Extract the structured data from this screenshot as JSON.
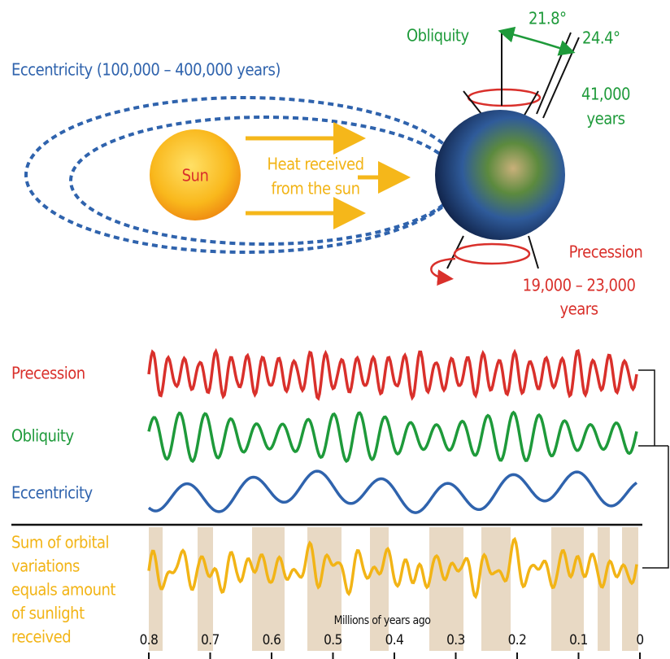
{
  "orbit": {
    "eccentricity_label": "Eccentricity (100,000 – 400,000 years)",
    "sun": "Sun",
    "heat": [
      "Heat received",
      "from the sun"
    ],
    "obliquity": "Obliquity",
    "angle_min": "21.8°",
    "angle_max": "24.4°",
    "obliquity_period": [
      "41,000",
      "years"
    ],
    "precession": "Precession",
    "precession_period": [
      "19,000 – 23,000",
      "years"
    ]
  },
  "cycles": {
    "rows": [
      {
        "label": [
          "Precession"
        ],
        "color": "#d9302b"
      },
      {
        "label": [
          "Obliquity"
        ],
        "color": "#1e9a3a"
      },
      {
        "label": [
          "Eccentricity"
        ],
        "color": "#2f63ad"
      },
      {
        "label": [
          "Sum of orbital",
          "variations",
          "equals amount",
          "of sunlight",
          "received"
        ],
        "color": "#f2b416"
      }
    ],
    "axis_title": "Millions of years ago",
    "ticks": [
      0.8,
      0.7,
      0.6,
      0.5,
      0.4,
      0.3,
      0.2,
      0.1,
      0
    ]
  }
}
